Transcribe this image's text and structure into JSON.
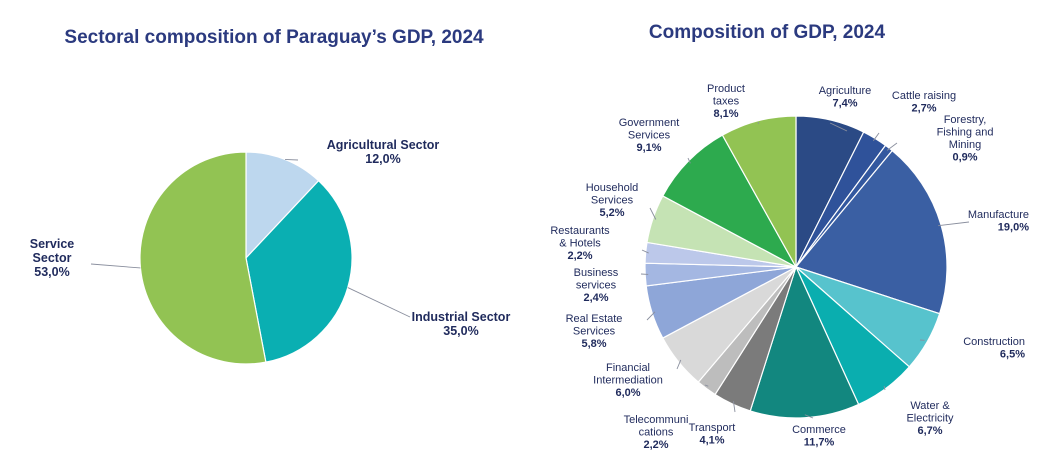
{
  "colors": {
    "title": "#2B3A7F",
    "label": "#1F2A5C",
    "leader": "#8A8F9E",
    "separator": "#FFFFFF"
  },
  "chart_data": [
    {
      "type": "pie",
      "title": "Sectoral composition of Paraguay’s GDP, 2024",
      "start_angle_deg": 0,
      "direction": "clockwise",
      "slices": [
        {
          "label": "Agricultural Sector",
          "label_lines": [
            "Agricultural Sector"
          ],
          "value": 12.0,
          "value_text": "12,0%",
          "color": "#BDD7EE"
        },
        {
          "label": "Industrial Sector",
          "label_lines": [
            "Industrial Sector"
          ],
          "value": 35.0,
          "value_text": "35,0%",
          "color": "#0AAFB2"
        },
        {
          "label": "Service Sector",
          "label_lines": [
            "Service",
            "Sector"
          ],
          "value": 53.0,
          "value_text": "53,0%",
          "color": "#92C353"
        }
      ]
    },
    {
      "type": "pie",
      "title": "Composition of GDP, 2024",
      "start_angle_deg": 0,
      "direction": "clockwise",
      "slices": [
        {
          "label": "Agriculture",
          "label_lines": [
            "Agriculture"
          ],
          "value": 7.4,
          "value_text": "7,4%",
          "color": "#2B4A85"
        },
        {
          "label": "Cattle raising",
          "label_lines": [
            "Cattle raising"
          ],
          "value": 2.7,
          "value_text": "2,7%",
          "color": "#2F529A"
        },
        {
          "label": "Forestry, Fishing and Mining",
          "label_lines": [
            "Forestry,",
            "Fishing and",
            "Mining"
          ],
          "value": 0.9,
          "value_text": "0,9%",
          "color": "#33589F"
        },
        {
          "label": "Manufacture",
          "label_lines": [
            "Manufacture"
          ],
          "value": 19.0,
          "value_text": "19,0%",
          "color": "#3A5FA3"
        },
        {
          "label": "Construction",
          "label_lines": [
            "Construction"
          ],
          "value": 6.5,
          "value_text": "6,5%",
          "color": "#57C3CD"
        },
        {
          "label": "Water & Electricity",
          "label_lines": [
            "Water &",
            "Electricity"
          ],
          "value": 6.7,
          "value_text": "6,7%",
          "color": "#0AAEAF"
        },
        {
          "label": "Commerce",
          "label_lines": [
            "Commerce"
          ],
          "value": 11.7,
          "value_text": "11,7%",
          "color": "#12877F"
        },
        {
          "label": "Transport",
          "label_lines": [
            "Transport"
          ],
          "value": 4.1,
          "value_text": "4,1%",
          "color": "#7B7B7B"
        },
        {
          "label": "Telecommunications",
          "label_lines": [
            "Telecommuni",
            "cations"
          ],
          "value": 2.2,
          "value_text": "2,2%",
          "color": "#BDBDBD"
        },
        {
          "label": "Financial Intermediation",
          "label_lines": [
            "Financial",
            "Intermediation"
          ],
          "value": 6.0,
          "value_text": "6,0%",
          "color": "#D9D9D9"
        },
        {
          "label": "Real Estate Services",
          "label_lines": [
            "Real Estate",
            "Services"
          ],
          "value": 5.8,
          "value_text": "5,8%",
          "color": "#8EA6D8"
        },
        {
          "label": "Business services",
          "label_lines": [
            "Business",
            "services"
          ],
          "value": 2.4,
          "value_text": "2,4%",
          "color": "#A4B7E2"
        },
        {
          "label": "Restaurants & Hotels",
          "label_lines": [
            "Restaurants",
            "& Hotels"
          ],
          "value": 2.2,
          "value_text": "2,2%",
          "color": "#BCC8EA"
        },
        {
          "label": "Household Services",
          "label_lines": [
            "Household",
            "Services"
          ],
          "value": 5.2,
          "value_text": "5,2%",
          "color": "#C5E3B4"
        },
        {
          "label": "Government Services",
          "label_lines": [
            "Government",
            "Services"
          ],
          "value": 9.1,
          "value_text": "9,1%",
          "color": "#2DAA4E"
        },
        {
          "label": "Product taxes",
          "label_lines": [
            "Product",
            "taxes"
          ],
          "value": 8.1,
          "value_text": "8,1%",
          "color": "#92C353"
        }
      ]
    }
  ]
}
